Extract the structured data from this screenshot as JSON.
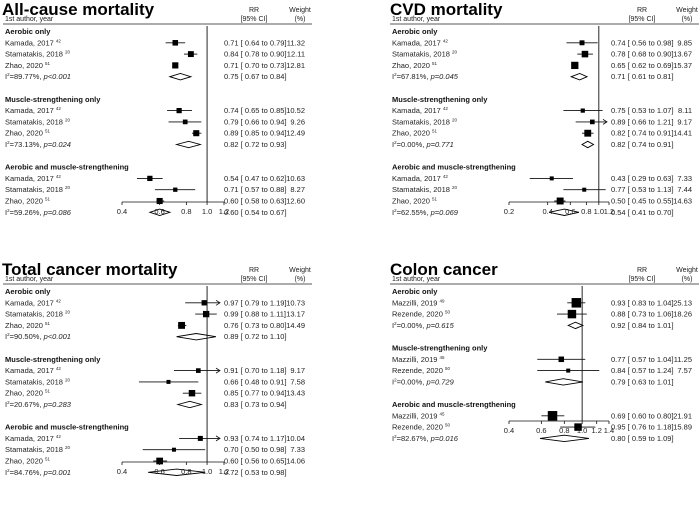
{
  "chart_data": [
    {
      "type": "forest",
      "title": "All-cause mortality",
      "col_headers": {
        "study": "1st author, year",
        "rr_line1": "RR",
        "rr_line2": "[95% CI]",
        "w_line1": "Weight",
        "w_line2": "(%)"
      },
      "xscale": "log",
      "xlim": [
        0.4,
        1.2
      ],
      "xticks": [
        "0.4",
        "0.6",
        "0.8",
        "1.0",
        "1.2"
      ],
      "groups": [
        {
          "name": "Aerobic only",
          "studies": [
            {
              "label": "Kamada, 2017",
              "ref": "42",
              "rr": 0.71,
              "lo": 0.64,
              "hi": 0.79,
              "weight": "11.32",
              "text": "0.71 [ 0.64  to  0.79]"
            },
            {
              "label": "Stamatakis, 2018",
              "ref": "20",
              "rr": 0.84,
              "lo": 0.78,
              "hi": 0.9,
              "weight": "12.11",
              "text": "0.84 [ 0.78  to  0.90]"
            },
            {
              "label": "Zhao, 2020",
              "ref": "51",
              "rr": 0.71,
              "lo": 0.7,
              "hi": 0.73,
              "weight": "12.81",
              "text": "0.71 [ 0.70  to  0.73]"
            }
          ],
          "pooled": {
            "het": "=89.77%, ",
            "p": "p<0.001",
            "rr": 0.75,
            "lo": 0.67,
            "hi": 0.84,
            "text": "0.75 [ 0.67  to  0.84]"
          }
        },
        {
          "name": "Muscle-strengthening only",
          "studies": [
            {
              "label": "Kamada, 2017",
              "ref": "42",
              "rr": 0.74,
              "lo": 0.65,
              "hi": 0.85,
              "weight": "10.52",
              "text": "0.74 [ 0.65  to  0.85]"
            },
            {
              "label": "Stamatakis, 2018",
              "ref": "20",
              "rr": 0.79,
              "lo": 0.66,
              "hi": 0.94,
              "weight": "9.26",
              "text": "0.79 [ 0.66  to  0.94]"
            },
            {
              "label": "Zhao, 2020",
              "ref": "51",
              "rr": 0.89,
              "lo": 0.85,
              "hi": 0.94,
              "weight": "12.49",
              "text": "0.89 [ 0.85  to  0.94]"
            }
          ],
          "pooled": {
            "het": "=73.13%, ",
            "p": "p=0.024",
            "rr": 0.82,
            "lo": 0.72,
            "hi": 0.93,
            "text": "0.82 [ 0.72  to  0.93]"
          }
        },
        {
          "name": "Aerobic and muscle-strengthening",
          "studies": [
            {
              "label": "Kamada, 2017",
              "ref": "42",
              "rr": 0.54,
              "lo": 0.47,
              "hi": 0.62,
              "weight": "10.63",
              "text": "0.54 [ 0.47  to  0.62]"
            },
            {
              "label": "Stamatakis, 2018",
              "ref": "20",
              "rr": 0.71,
              "lo": 0.57,
              "hi": 0.88,
              "weight": "8.27",
              "text": "0.71 [ 0.57  to  0.88]"
            },
            {
              "label": "Zhao, 2020",
              "ref": "51",
              "rr": 0.6,
              "lo": 0.58,
              "hi": 0.63,
              "weight": "12.60",
              "text": "0.60 [ 0.58  to  0.63]"
            }
          ],
          "pooled": {
            "het": "=59.26%, ",
            "p": "p=0.086",
            "rr": 0.6,
            "lo": 0.54,
            "hi": 0.67,
            "text": "0.60 [ 0.54  to  0.67]"
          }
        }
      ]
    },
    {
      "type": "forest",
      "title": "CVD mortality",
      "col_headers": {
        "study": "1st author, year",
        "rr_line1": "RR",
        "rr_line2": "[95% CI]",
        "w_line1": "Weight",
        "w_line2": "(%)"
      },
      "xscale": "log",
      "xlim": [
        0.2,
        1.2
      ],
      "xticks": [
        "0.2",
        "0.4",
        "0.6",
        "0.8",
        "1.0",
        "1.2"
      ],
      "groups": [
        {
          "name": "Aerobic only",
          "studies": [
            {
              "label": "Kamada, 2017",
              "ref": "42",
              "rr": 0.74,
              "lo": 0.56,
              "hi": 0.98,
              "weight": "9.85",
              "text": "0.74 [ 0.56  to  0.98]"
            },
            {
              "label": "Stamatakis, 2018",
              "ref": "20",
              "rr": 0.78,
              "lo": 0.68,
              "hi": 0.9,
              "weight": "13.67",
              "text": "0.78 [ 0.68  to  0.90]"
            },
            {
              "label": "Zhao, 2020",
              "ref": "51",
              "rr": 0.65,
              "lo": 0.62,
              "hi": 0.69,
              "weight": "15.37",
              "text": "0.65 [ 0.62  to  0.69]"
            }
          ],
          "pooled": {
            "het": "=67.81%, ",
            "p": "p=0.045",
            "rr": 0.71,
            "lo": 0.61,
            "hi": 0.81,
            "text": "0.71 [ 0.61  to  0.81]"
          }
        },
        {
          "name": "Muscle-strengthening only",
          "studies": [
            {
              "label": "Kamada, 2017",
              "ref": "42",
              "rr": 0.75,
              "lo": 0.53,
              "hi": 1.07,
              "weight": "8.11",
              "text": "0.75 [ 0.53  to  1.07]"
            },
            {
              "label": "Stamatakis, 2018",
              "ref": "20",
              "rr": 0.89,
              "lo": 0.66,
              "hi": 1.21,
              "weight": "9.17",
              "text": "0.89 [ 0.66  to  1.21]"
            },
            {
              "label": "Zhao, 2020",
              "ref": "51",
              "rr": 0.82,
              "lo": 0.74,
              "hi": 0.91,
              "weight": "14.41",
              "text": "0.82 [ 0.74  to  0.91]"
            }
          ],
          "pooled": {
            "het": "=0.00%, ",
            "p": "p=0.771",
            "rr": 0.82,
            "lo": 0.74,
            "hi": 0.91,
            "text": "0.82 [ 0.74  to  0.91]"
          }
        },
        {
          "name": "Aerobic and muscle-strengthening",
          "studies": [
            {
              "label": "Kamada, 2017",
              "ref": "42",
              "rr": 0.43,
              "lo": 0.29,
              "hi": 0.63,
              "weight": "7.33",
              "text": "0.43 [ 0.29  to  0.63]"
            },
            {
              "label": "Stamatakis, 2018",
              "ref": "20",
              "rr": 0.77,
              "lo": 0.53,
              "hi": 1.13,
              "weight": "7.44",
              "text": "0.77 [ 0.53  to  1.13]"
            },
            {
              "label": "Zhao, 2020",
              "ref": "51",
              "rr": 0.5,
              "lo": 0.45,
              "hi": 0.55,
              "weight": "14.63",
              "text": "0.50 [ 0.45  to  0.55]"
            }
          ],
          "pooled": {
            "het": "=62.55%, ",
            "p": "p=0.069",
            "rr": 0.54,
            "lo": 0.41,
            "hi": 0.7,
            "text": "0.54 [ 0.41  to  0.70]"
          }
        }
      ]
    },
    {
      "type": "forest",
      "title": "Total cancer mortality",
      "col_headers": {
        "study": "1st author, year",
        "rr_line1": "RR",
        "rr_line2": "[95% CI]",
        "w_line1": "Weight",
        "w_line2": "(%)"
      },
      "xscale": "log",
      "xlim": [
        0.4,
        1.2
      ],
      "xticks": [
        "0.4",
        "0.6",
        "0.8",
        "1.0",
        "1.2"
      ],
      "groups": [
        {
          "name": "Aerobic only",
          "studies": [
            {
              "label": "Kamada, 2017",
              "ref": "42",
              "rr": 0.97,
              "lo": 0.79,
              "hi": 1.19,
              "weight": "10.73",
              "text": "0.97 [ 0.79  to  1.19]"
            },
            {
              "label": "Stamatakis, 2018",
              "ref": "20",
              "rr": 0.99,
              "lo": 0.88,
              "hi": 1.11,
              "weight": "13.17",
              "text": "0.99 [ 0.88  to  1.11]"
            },
            {
              "label": "Zhao, 2020",
              "ref": "51",
              "rr": 0.76,
              "lo": 0.73,
              "hi": 0.8,
              "weight": "14.49",
              "text": "0.76 [ 0.73  to  0.80]"
            }
          ],
          "pooled": {
            "het": "=90.50%, ",
            "p": "p<0.001",
            "rr": 0.89,
            "lo": 0.72,
            "hi": 1.1,
            "text": "0.89 [ 0.72  to  1.10]"
          }
        },
        {
          "name": "Muscle-strengthening only",
          "studies": [
            {
              "label": "Kamada, 2017",
              "ref": "42",
              "rr": 0.91,
              "lo": 0.7,
              "hi": 1.18,
              "weight": "9.17",
              "text": "0.91 [ 0.70  to  1.18]"
            },
            {
              "label": "Stamatakis, 2018",
              "ref": "20",
              "rr": 0.66,
              "lo": 0.48,
              "hi": 0.91,
              "weight": "7.58",
              "text": "0.66 [ 0.48  to  0.91]"
            },
            {
              "label": "Zhao, 2020",
              "ref": "51",
              "rr": 0.85,
              "lo": 0.77,
              "hi": 0.94,
              "weight": "13.43",
              "text": "0.85 [ 0.77  to  0.94]"
            }
          ],
          "pooled": {
            "het": "=20.67%, ",
            "p": "p=0.283",
            "rr": 0.83,
            "lo": 0.73,
            "hi": 0.94,
            "text": "0.83 [ 0.73  to  0.94]"
          }
        },
        {
          "name": "Aerobic and muscle-strengthening",
          "studies": [
            {
              "label": "Kamada, 2017",
              "ref": "42",
              "rr": 0.93,
              "lo": 0.74,
              "hi": 1.17,
              "weight": "10.04",
              "text": "0.93 [ 0.74  to  1.17]"
            },
            {
              "label": "Stamatakis, 2018",
              "ref": "20",
              "rr": 0.7,
              "lo": 0.5,
              "hi": 0.98,
              "weight": "7.33",
              "text": "0.70 [ 0.50  to  0.98]"
            },
            {
              "label": "Zhao, 2020",
              "ref": "51",
              "rr": 0.6,
              "lo": 0.56,
              "hi": 0.65,
              "weight": "14.06",
              "text": "0.60 [ 0.56  to  0.65]"
            }
          ],
          "pooled": {
            "het": "=84.76%, ",
            "p": "p=0.001",
            "rr": 0.72,
            "lo": 0.53,
            "hi": 0.98,
            "text": "0.72 [ 0.53  to  0.98]"
          }
        }
      ]
    },
    {
      "type": "forest",
      "title": "Colon cancer",
      "col_headers": {
        "study": "1st author, year",
        "rr_line1": "RR",
        "rr_line2": "[95% CI]",
        "w_line1": "Weight",
        "w_line2": "(%)"
      },
      "xscale": "log",
      "xlim": [
        0.4,
        1.4
      ],
      "xticks": [
        "0.4",
        "0.6",
        "0.8",
        "1.0",
        "1.2",
        "1.4"
      ],
      "groups": [
        {
          "name": "Aerobic only",
          "studies": [
            {
              "label": "Mazzilli, 2019",
              "ref": "49",
              "rr": 0.93,
              "lo": 0.83,
              "hi": 1.04,
              "weight": "25.13",
              "text": "0.93 [ 0.83  to  1.04]"
            },
            {
              "label": "Rezende, 2020",
              "ref": "50",
              "rr": 0.88,
              "lo": 0.73,
              "hi": 1.06,
              "weight": "18.26",
              "text": "0.88 [ 0.73  to  1.06]"
            }
          ],
          "pooled": {
            "het": "=0.00%, ",
            "p": "p=0.615",
            "rr": 0.92,
            "lo": 0.84,
            "hi": 1.01,
            "text": "0.92 [ 0.84  to  1.01]"
          }
        },
        {
          "name": "Muscle-strengthening only",
          "studies": [
            {
              "label": "Mazzilli, 2019",
              "ref": "45",
              "rr": 0.77,
              "lo": 0.57,
              "hi": 1.04,
              "weight": "11.25",
              "text": "0.77 [ 0.57  to  1.04]"
            },
            {
              "label": "Rezende, 2020",
              "ref": "50",
              "rr": 0.84,
              "lo": 0.57,
              "hi": 1.24,
              "weight": "7.57",
              "text": "0.84 [ 0.57  to  1.24]"
            }
          ],
          "pooled": {
            "het": "=0.00%, ",
            "p": "p=0.729",
            "rr": 0.79,
            "lo": 0.63,
            "hi": 1.01,
            "text": "0.79 [ 0.63  to  1.01]"
          }
        },
        {
          "name": "Aerobic and muscle-strengthening",
          "studies": [
            {
              "label": "Mazzilli, 2019",
              "ref": "45",
              "rr": 0.69,
              "lo": 0.6,
              "hi": 0.8,
              "weight": "21.91",
              "text": "0.69 [ 0.60  to  0.80]"
            },
            {
              "label": "Rezende, 2020",
              "ref": "50",
              "rr": 0.95,
              "lo": 0.76,
              "hi": 1.18,
              "weight": "15.89",
              "text": "0.95 [ 0.76  to  1.18]"
            }
          ],
          "pooled": {
            "het": "=82.67%, ",
            "p": "p=0.016",
            "rr": 0.8,
            "lo": 0.59,
            "hi": 1.09,
            "text": "0.80 [ 0.59  to  1.09]"
          }
        }
      ]
    }
  ],
  "het_prefix": "I",
  "het_sup": "2"
}
